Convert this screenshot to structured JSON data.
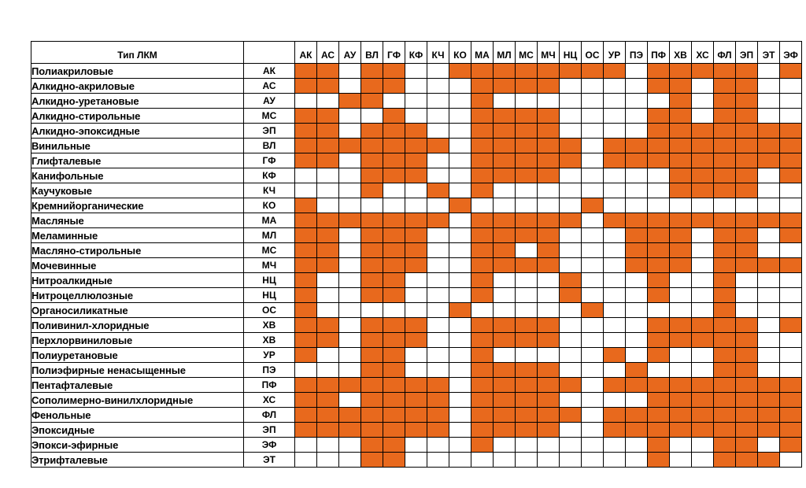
{
  "table": {
    "header_name": "Тип ЛКМ",
    "header_code": "",
    "columns": [
      "АК",
      "АС",
      "АУ",
      "ВЛ",
      "ГФ",
      "КФ",
      "КЧ",
      "КО",
      "МА",
      "МЛ",
      "МС",
      "МЧ",
      "НЦ",
      "ОС",
      "УР",
      "ПЭ",
      "ПФ",
      "ХВ",
      "ХС",
      "ФЛ",
      "ЭП",
      "ЭТ",
      "ЭФ"
    ],
    "fill_color": "#e8691d",
    "rows": [
      {
        "name": "Полиакриловые",
        "code": "АК",
        "cells": [
          1,
          1,
          0,
          1,
          1,
          0,
          0,
          1,
          1,
          1,
          1,
          1,
          1,
          1,
          1,
          0,
          1,
          1,
          1,
          1,
          1,
          0,
          1
        ]
      },
      {
        "name": "Алкидно-акриловые",
        "code": "АС",
        "cells": [
          1,
          1,
          0,
          1,
          1,
          0,
          0,
          0,
          1,
          1,
          1,
          1,
          0,
          0,
          0,
          0,
          1,
          1,
          0,
          1,
          1,
          0,
          0
        ]
      },
      {
        "name": "Алкидно-уретановые",
        "code": "АУ",
        "cells": [
          0,
          0,
          1,
          1,
          0,
          0,
          0,
          0,
          1,
          0,
          0,
          0,
          0,
          0,
          0,
          0,
          0,
          1,
          0,
          1,
          1,
          0,
          0
        ]
      },
      {
        "name": "Алкидно-стирольные",
        "code": "МС",
        "cells": [
          1,
          1,
          0,
          0,
          1,
          0,
          0,
          0,
          1,
          1,
          1,
          1,
          0,
          0,
          0,
          0,
          1,
          1,
          0,
          1,
          1,
          0,
          0
        ]
      },
      {
        "name": "Алкидно-эпоксидные",
        "code": "ЭП",
        "cells": [
          1,
          1,
          0,
          1,
          1,
          1,
          0,
          0,
          1,
          1,
          1,
          1,
          0,
          0,
          0,
          0,
          1,
          1,
          1,
          1,
          1,
          1,
          1
        ]
      },
      {
        "name": "Винильные",
        "code": "ВЛ",
        "cells": [
          1,
          1,
          1,
          1,
          1,
          1,
          1,
          0,
          1,
          1,
          1,
          1,
          1,
          0,
          1,
          1,
          1,
          1,
          1,
          1,
          1,
          1,
          1
        ]
      },
      {
        "name": "Глифталевые",
        "code": "ГФ",
        "cells": [
          1,
          1,
          0,
          1,
          1,
          1,
          0,
          0,
          1,
          1,
          1,
          1,
          1,
          0,
          1,
          1,
          1,
          1,
          1,
          1,
          1,
          1,
          1
        ]
      },
      {
        "name": "Канифольные",
        "code": "КФ",
        "cells": [
          0,
          0,
          0,
          1,
          1,
          1,
          0,
          0,
          1,
          1,
          1,
          1,
          0,
          0,
          0,
          0,
          0,
          1,
          1,
          1,
          1,
          0,
          1
        ]
      },
      {
        "name": "Каучуковые",
        "code": "КЧ",
        "cells": [
          0,
          0,
          0,
          1,
          0,
          0,
          1,
          0,
          1,
          0,
          0,
          0,
          0,
          0,
          0,
          0,
          0,
          1,
          1,
          1,
          1,
          0,
          0
        ]
      },
      {
        "name": "Кремнийорганические",
        "code": "КО",
        "cells": [
          1,
          0,
          0,
          0,
          0,
          0,
          0,
          1,
          0,
          0,
          0,
          0,
          0,
          1,
          0,
          0,
          0,
          0,
          0,
          0,
          0,
          0,
          0
        ]
      },
      {
        "name": "Масляные",
        "code": "МА",
        "cells": [
          1,
          1,
          1,
          1,
          1,
          1,
          1,
          0,
          1,
          1,
          1,
          1,
          1,
          0,
          1,
          1,
          1,
          1,
          1,
          1,
          1,
          1,
          1
        ]
      },
      {
        "name": "Меламинные",
        "code": "МЛ",
        "cells": [
          1,
          1,
          0,
          1,
          1,
          1,
          0,
          0,
          1,
          1,
          1,
          1,
          0,
          0,
          0,
          1,
          1,
          1,
          0,
          1,
          1,
          0,
          1
        ]
      },
      {
        "name": "Масляно-стирольные",
        "code": "МС",
        "cells": [
          1,
          1,
          0,
          1,
          1,
          1,
          0,
          0,
          1,
          1,
          0,
          1,
          0,
          0,
          0,
          1,
          1,
          1,
          0,
          1,
          1,
          0,
          0
        ]
      },
      {
        "name": "Мочевинные",
        "code": "МЧ",
        "cells": [
          1,
          1,
          0,
          1,
          1,
          1,
          0,
          0,
          1,
          1,
          1,
          1,
          0,
          0,
          0,
          1,
          1,
          1,
          0,
          1,
          1,
          1,
          1
        ]
      },
      {
        "name": "Нитроалкидные",
        "code": "НЦ",
        "cells": [
          1,
          0,
          0,
          1,
          1,
          0,
          0,
          0,
          1,
          0,
          0,
          0,
          1,
          0,
          0,
          0,
          1,
          0,
          0,
          1,
          0,
          0,
          0
        ]
      },
      {
        "name": "Нитроцеллюлозные",
        "code": "НЦ",
        "cells": [
          1,
          0,
          0,
          1,
          1,
          0,
          0,
          0,
          1,
          0,
          0,
          0,
          1,
          0,
          0,
          0,
          1,
          0,
          0,
          1,
          0,
          0,
          0
        ]
      },
      {
        "name": "Органосиликатные",
        "code": "ОС",
        "cells": [
          1,
          0,
          0,
          0,
          0,
          0,
          0,
          1,
          0,
          0,
          0,
          0,
          0,
          1,
          0,
          0,
          0,
          0,
          0,
          1,
          0,
          0,
          0
        ]
      },
      {
        "name": "Поливинил-хлоридные",
        "code": "ХВ",
        "cells": [
          1,
          1,
          0,
          1,
          1,
          1,
          0,
          0,
          1,
          1,
          1,
          1,
          0,
          0,
          0,
          0,
          1,
          1,
          1,
          1,
          1,
          0,
          1
        ]
      },
      {
        "name": "Перхлорвиниловые",
        "code": "ХВ",
        "cells": [
          1,
          1,
          0,
          1,
          1,
          1,
          0,
          0,
          1,
          1,
          1,
          1,
          0,
          0,
          0,
          0,
          1,
          1,
          1,
          1,
          1,
          0,
          0
        ]
      },
      {
        "name": "Полиуретановые",
        "code": "УР",
        "cells": [
          1,
          0,
          0,
          1,
          1,
          0,
          0,
          0,
          1,
          0,
          0,
          0,
          0,
          0,
          1,
          0,
          1,
          0,
          0,
          1,
          1,
          0,
          0
        ]
      },
      {
        "name": "Полиэфирные ненасыщенные",
        "code": "ПЭ",
        "cells": [
          0,
          0,
          0,
          1,
          1,
          0,
          0,
          0,
          1,
          1,
          1,
          1,
          0,
          0,
          0,
          1,
          0,
          0,
          0,
          1,
          1,
          0,
          0
        ]
      },
      {
        "name": "Пентафталевые",
        "code": "ПФ",
        "cells": [
          1,
          1,
          1,
          1,
          1,
          1,
          1,
          0,
          1,
          1,
          1,
          1,
          1,
          0,
          1,
          1,
          1,
          1,
          1,
          1,
          1,
          1,
          1
        ]
      },
      {
        "name": "Сополимерно-винилхлоридные",
        "code": "ХС",
        "cells": [
          1,
          1,
          0,
          1,
          1,
          1,
          1,
          0,
          1,
          1,
          1,
          1,
          0,
          0,
          0,
          0,
          1,
          1,
          1,
          1,
          1,
          1,
          1
        ]
      },
      {
        "name": "Фенольные",
        "code": "ФЛ",
        "cells": [
          1,
          1,
          1,
          1,
          1,
          1,
          1,
          0,
          1,
          1,
          1,
          1,
          1,
          0,
          1,
          1,
          1,
          1,
          1,
          1,
          1,
          1,
          1
        ]
      },
      {
        "name": "Эпоксидные",
        "code": "ЭП",
        "cells": [
          1,
          1,
          1,
          1,
          1,
          1,
          1,
          0,
          1,
          1,
          1,
          1,
          0,
          0,
          1,
          1,
          1,
          1,
          1,
          1,
          1,
          1,
          1
        ]
      },
      {
        "name": "Эпокси-эфирные",
        "code": "ЭФ",
        "cells": [
          0,
          0,
          0,
          1,
          1,
          0,
          0,
          0,
          1,
          0,
          0,
          0,
          0,
          0,
          0,
          0,
          1,
          0,
          0,
          1,
          1,
          0,
          1
        ]
      },
      {
        "name": "Этрифталевые",
        "code": "ЭТ",
        "cells": [
          0,
          0,
          0,
          1,
          1,
          0,
          0,
          0,
          0,
          0,
          0,
          0,
          0,
          0,
          0,
          0,
          1,
          0,
          0,
          1,
          1,
          1,
          0
        ]
      }
    ]
  }
}
